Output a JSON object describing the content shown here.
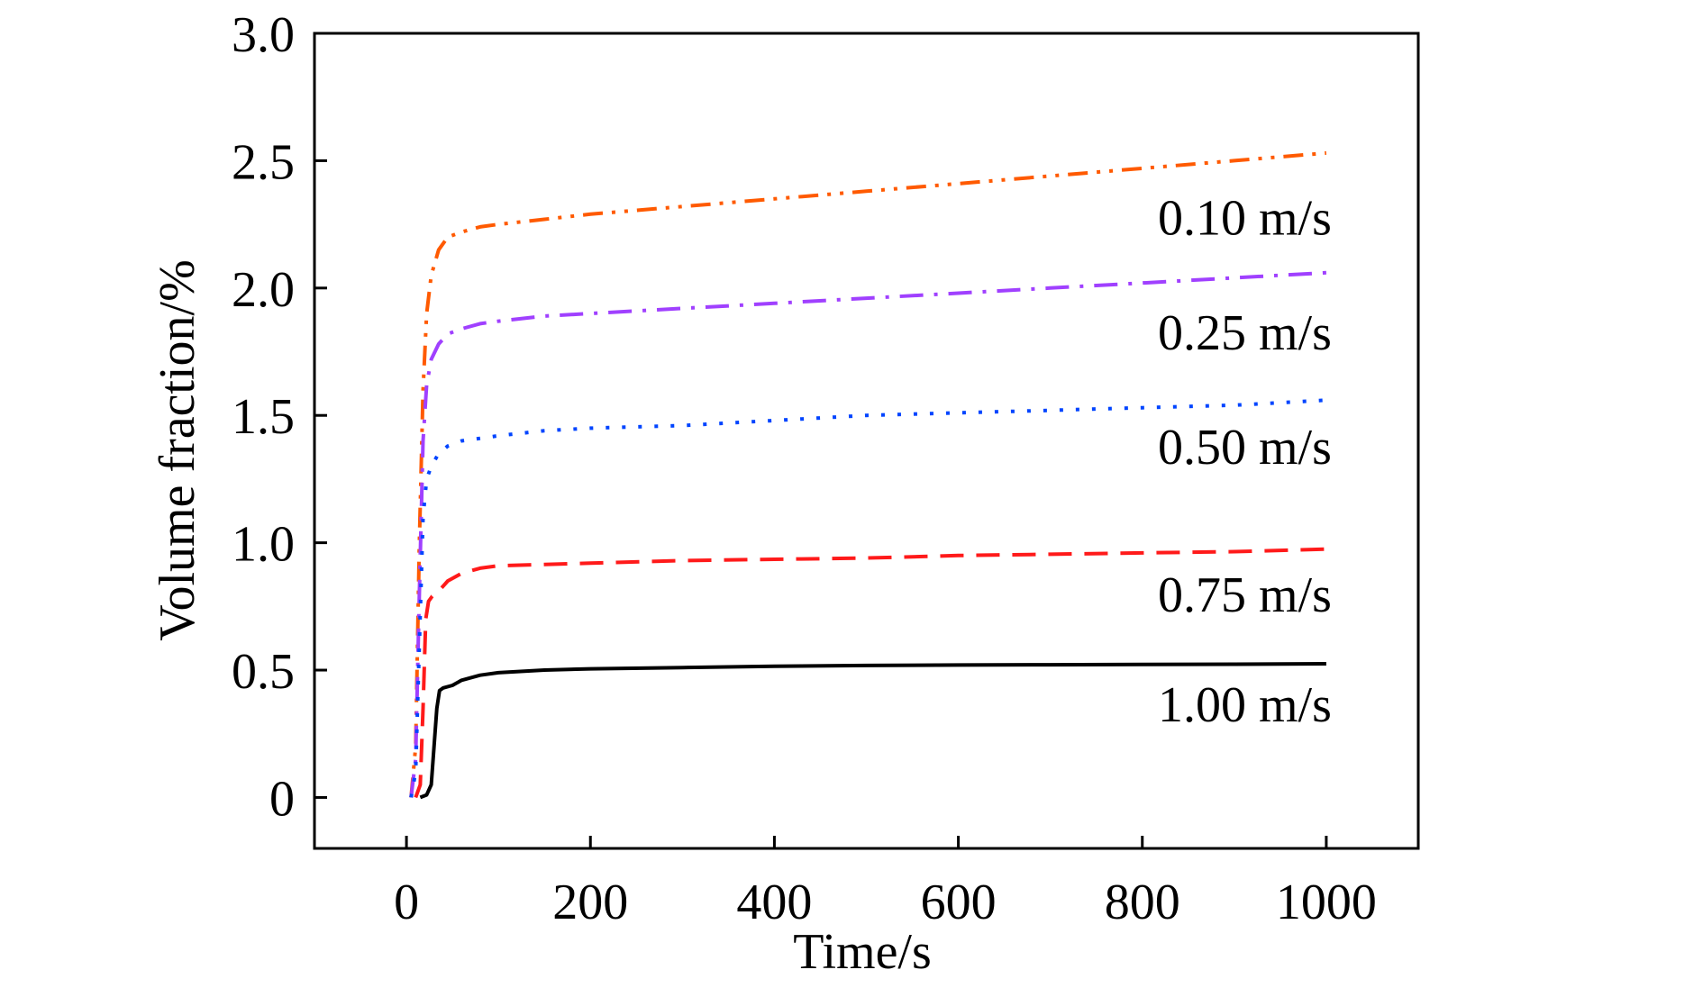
{
  "chart_data": {
    "type": "line",
    "title": "",
    "xlabel": "Time/s",
    "ylabel": "Volume fraction/%",
    "xlim": [
      -100,
      1100
    ],
    "ylim": [
      -0.2,
      3.0
    ],
    "xticks": [
      0,
      200,
      400,
      600,
      800,
      1000
    ],
    "xtick_labels": [
      "0",
      "200",
      "400",
      "600",
      "800",
      "1000"
    ],
    "yticks": [
      0,
      0.5,
      1.0,
      1.5,
      2.0,
      2.5,
      3.0
    ],
    "ytick_labels": [
      "0",
      "0.5",
      "1.0",
      "1.5",
      "2.0",
      "2.5",
      "3.0"
    ],
    "grid": false,
    "series": [
      {
        "name": "0.10 m/s",
        "color": "#ff5a00",
        "dash": "dash-dot-dot",
        "x": [
          5,
          10,
          14,
          18,
          22,
          27,
          35,
          45,
          60,
          80,
          100,
          150,
          200,
          300,
          400,
          500,
          600,
          700,
          800,
          900,
          1000
        ],
        "y": [
          0,
          0.2,
          1.0,
          1.6,
          1.9,
          2.05,
          2.15,
          2.2,
          2.22,
          2.24,
          2.25,
          2.27,
          2.29,
          2.32,
          2.35,
          2.38,
          2.41,
          2.44,
          2.47,
          2.5,
          2.53
        ]
      },
      {
        "name": "0.25 m/s",
        "color": "#a040ff",
        "dash": "dash-dot",
        "x": [
          5,
          10,
          14,
          18,
          22,
          27,
          35,
          45,
          60,
          80,
          100,
          150,
          200,
          300,
          400,
          500,
          600,
          700,
          800,
          900,
          1000
        ],
        "y": [
          0,
          0.15,
          0.8,
          1.4,
          1.62,
          1.72,
          1.78,
          1.82,
          1.84,
          1.86,
          1.87,
          1.89,
          1.9,
          1.92,
          1.94,
          1.96,
          1.98,
          2.0,
          2.02,
          2.04,
          2.06
        ]
      },
      {
        "name": "0.50 m/s",
        "color": "#0044ff",
        "dash": "dot",
        "x": [
          5,
          10,
          14,
          18,
          22,
          27,
          35,
          45,
          60,
          80,
          100,
          150,
          200,
          300,
          400,
          500,
          600,
          700,
          800,
          900,
          1000
        ],
        "y": [
          0,
          0.1,
          0.6,
          1.1,
          1.25,
          1.3,
          1.35,
          1.38,
          1.4,
          1.41,
          1.42,
          1.44,
          1.45,
          1.46,
          1.48,
          1.5,
          1.51,
          1.52,
          1.53,
          1.54,
          1.56
        ]
      },
      {
        "name": "0.75 m/s",
        "color": "#ff1a1a",
        "dash": "dash",
        "x": [
          10,
          15,
          18,
          21,
          24,
          28,
          35,
          45,
          60,
          80,
          100,
          150,
          200,
          300,
          400,
          500,
          600,
          700,
          800,
          900,
          1000
        ],
        "y": [
          0,
          0.05,
          0.35,
          0.7,
          0.77,
          0.79,
          0.81,
          0.85,
          0.88,
          0.9,
          0.91,
          0.915,
          0.92,
          0.93,
          0.935,
          0.94,
          0.95,
          0.955,
          0.96,
          0.965,
          0.975
        ]
      },
      {
        "name": "1.00 m/s",
        "color": "#000000",
        "dash": "solid",
        "x": [
          15,
          22,
          27,
          30,
          33,
          36,
          40,
          50,
          60,
          80,
          100,
          150,
          200,
          300,
          400,
          500,
          600,
          700,
          800,
          900,
          1000
        ],
        "y": [
          0,
          0.01,
          0.05,
          0.2,
          0.35,
          0.42,
          0.43,
          0.44,
          0.46,
          0.48,
          0.49,
          0.5,
          0.505,
          0.51,
          0.515,
          0.518,
          0.52,
          0.521,
          0.522,
          0.523,
          0.525
        ]
      }
    ],
    "annotations": [
      {
        "text": "0.10 m/s",
        "x": 1000,
        "y": 2.28
      },
      {
        "text": "0.25 m/s",
        "x": 1000,
        "y": 1.83
      },
      {
        "text": "0.50 m/s",
        "x": 1000,
        "y": 1.38
      },
      {
        "text": "0.75 m/s",
        "x": 1000,
        "y": 0.8
      },
      {
        "text": "1.00 m/s",
        "x": 1000,
        "y": 0.37
      }
    ]
  }
}
